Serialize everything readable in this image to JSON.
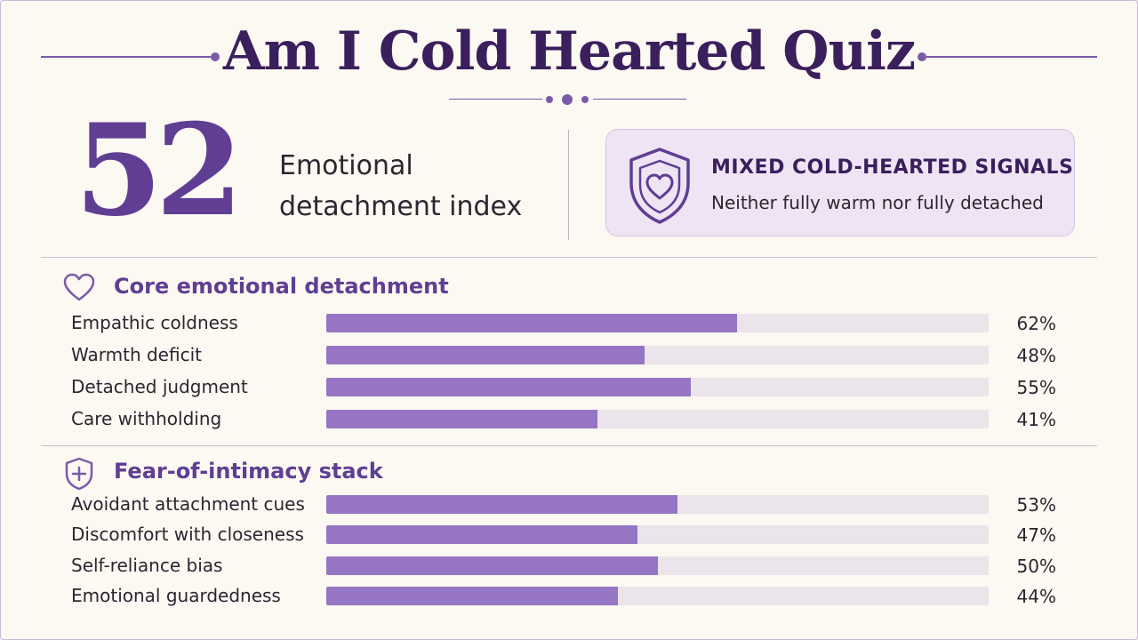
{
  "page": {
    "title": "Am I Cold Hearted Quiz"
  },
  "summary": {
    "score": "52",
    "score_label": "Emotional detachment index",
    "badge_title": "MIXED COLD-HEARTED SIGNALS",
    "badge_subtitle": "Neither fully warm nor fully detached",
    "badge_icon": "shield-heart-icon"
  },
  "colors": {
    "accent": "#5f3e93",
    "bar_fill": "#9575c4",
    "bar_track": "#ebe4ea",
    "title": "#3a1f5c"
  },
  "chart_data": [
    {
      "type": "bar",
      "orientation": "horizontal",
      "title": "Core emotional detachment",
      "icon": "heart-icon",
      "categories": [
        "Empathic coldness",
        "Warmth deficit",
        "Detached judgment",
        "Care withholding"
      ],
      "values": [
        62,
        48,
        55,
        41
      ],
      "value_labels": [
        "62%",
        "48%",
        "55%",
        "41%"
      ],
      "xlim": [
        0,
        100
      ],
      "grid": false
    },
    {
      "type": "bar",
      "orientation": "horizontal",
      "title": "Fear-of-intimacy stack",
      "icon": "shield-plus-icon",
      "categories": [
        "Avoidant attachment cues",
        "Discomfort with closeness",
        "Self-reliance bias",
        "Emotional guardedness"
      ],
      "values": [
        53,
        47,
        50,
        44
      ],
      "value_labels": [
        "53%",
        "47%",
        "50%",
        "44%"
      ],
      "xlim": [
        0,
        100
      ],
      "grid": false
    }
  ]
}
